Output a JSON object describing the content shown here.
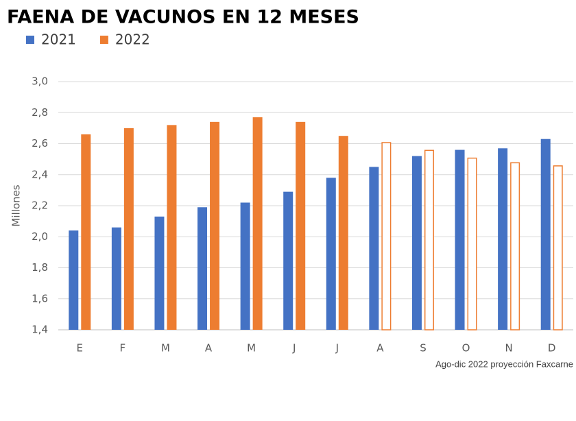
{
  "chart_data": {
    "type": "bar",
    "title": "FAENA DE VACUNOS EN 12 MESES",
    "y_label": "Millones",
    "annotation": "Ago-dic 2022 proyección Faxcarne",
    "categories": [
      "E",
      "F",
      "M",
      "A",
      "M",
      "J",
      "J",
      "A",
      "S",
      "O",
      "N",
      "D"
    ],
    "series": [
      {
        "name": "2021",
        "color": "#4472c4",
        "values": [
          2.04,
          2.06,
          2.13,
          2.19,
          2.22,
          2.29,
          2.38,
          2.45,
          2.52,
          2.56,
          2.57,
          2.63
        ],
        "outline_only": [
          false,
          false,
          false,
          false,
          false,
          false,
          false,
          false,
          false,
          false,
          false,
          false
        ]
      },
      {
        "name": "2022",
        "color": "#ed7d31",
        "values": [
          2.66,
          2.7,
          2.72,
          2.74,
          2.77,
          2.74,
          2.65,
          2.61,
          2.56,
          2.51,
          2.48,
          2.46
        ],
        "outline_only": [
          false,
          false,
          false,
          false,
          false,
          false,
          false,
          true,
          true,
          true,
          true,
          true
        ]
      }
    ],
    "ylim": [
      1.4,
      3.0
    ],
    "yticks": [
      {
        "value": 1.4,
        "label": "1,4"
      },
      {
        "value": 1.6,
        "label": "1,6"
      },
      {
        "value": 1.8,
        "label": "1,8"
      },
      {
        "value": 2.0,
        "label": "2,0"
      },
      {
        "value": 2.2,
        "label": "2,2"
      },
      {
        "value": 2.4,
        "label": "2,4"
      },
      {
        "value": 2.6,
        "label": "2,6"
      },
      {
        "value": 2.8,
        "label": "2,8"
      },
      {
        "value": 3.0,
        "label": "3,0"
      }
    ],
    "grid": true
  }
}
